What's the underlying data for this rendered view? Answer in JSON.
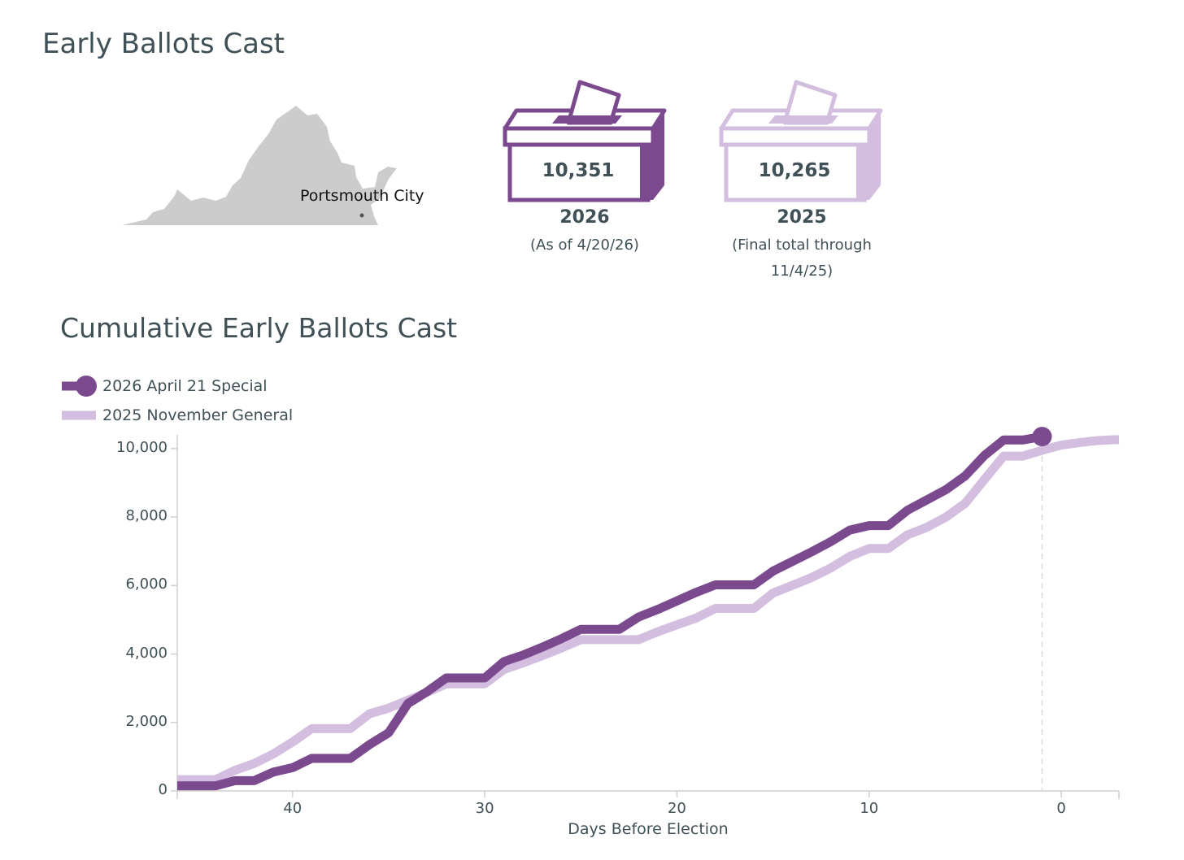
{
  "page": {
    "title": "Early Ballots Cast",
    "map_label": "Portsmouth City"
  },
  "ballot_boxes": [
    {
      "count": "10,351",
      "year": "2026",
      "note": "(As of 4/20/26)",
      "color": "#7b4a8e"
    },
    {
      "count": "10,265",
      "year": "2025",
      "note": "(Final total through 11/4/25)",
      "color": "#d3bedf"
    }
  ],
  "chart_data": {
    "type": "line",
    "title": "Cumulative Early Ballots Cast",
    "xlabel": "Days Before Election",
    "ylabel": "",
    "xlim": [
      46,
      -3
    ],
    "ylim": [
      0,
      10400
    ],
    "x_ticks": [
      40,
      30,
      20,
      10,
      0
    ],
    "x_tick_labels": [
      "40",
      "30",
      "20",
      "10",
      "0"
    ],
    "y_ticks": [
      0,
      2000,
      4000,
      6000,
      8000,
      10000
    ],
    "y_tick_labels": [
      "0",
      "2,000",
      "4,000",
      "6,000",
      "8,000",
      "10,000"
    ],
    "reference_line_x": 1,
    "series": [
      {
        "name": "2026 April 21 Special",
        "color": "#7b4a8e",
        "end_marker": true,
        "x": [
          46,
          44,
          43,
          42,
          41,
          40,
          39,
          38,
          37,
          36,
          35,
          34,
          33,
          32,
          31,
          30,
          29,
          28,
          27,
          26,
          25,
          24,
          23,
          22,
          21,
          20,
          19,
          18,
          17,
          16,
          15,
          14,
          13,
          12,
          11,
          10,
          9,
          8,
          7,
          6,
          5,
          4,
          3,
          2,
          1
        ],
        "y": [
          150,
          150,
          300,
          300,
          550,
          680,
          950,
          950,
          950,
          1350,
          1700,
          2550,
          2900,
          3300,
          3300,
          3300,
          3780,
          3970,
          4200,
          4450,
          4720,
          4720,
          4720,
          5080,
          5300,
          5550,
          5800,
          6020,
          6020,
          6020,
          6420,
          6700,
          6980,
          7280,
          7620,
          7750,
          7750,
          8200,
          8500,
          8800,
          9200,
          9800,
          10250,
          10250,
          10351
        ]
      },
      {
        "name": "2025 November General",
        "color": "#d3bedf",
        "end_marker": false,
        "x": [
          46,
          44,
          43,
          42,
          41,
          40,
          39,
          38,
          37,
          36,
          35,
          34,
          33,
          32,
          31,
          30,
          29,
          28,
          27,
          26,
          25,
          24,
          23,
          22,
          21,
          20,
          19,
          18,
          17,
          16,
          15,
          14,
          13,
          12,
          11,
          10,
          9,
          8,
          7,
          6,
          5,
          4,
          3,
          2,
          1,
          0,
          -1,
          -2,
          -3
        ],
        "y": [
          330,
          330,
          600,
          800,
          1080,
          1430,
          1820,
          1820,
          1820,
          2250,
          2420,
          2650,
          2880,
          3130,
          3130,
          3130,
          3550,
          3740,
          3950,
          4180,
          4420,
          4420,
          4420,
          4420,
          4650,
          4850,
          5050,
          5330,
          5330,
          5330,
          5780,
          6000,
          6230,
          6510,
          6850,
          7080,
          7080,
          7480,
          7700,
          8000,
          8400,
          9100,
          9780,
          9780,
          9950,
          10100,
          10180,
          10240,
          10265
        ]
      }
    ]
  }
}
